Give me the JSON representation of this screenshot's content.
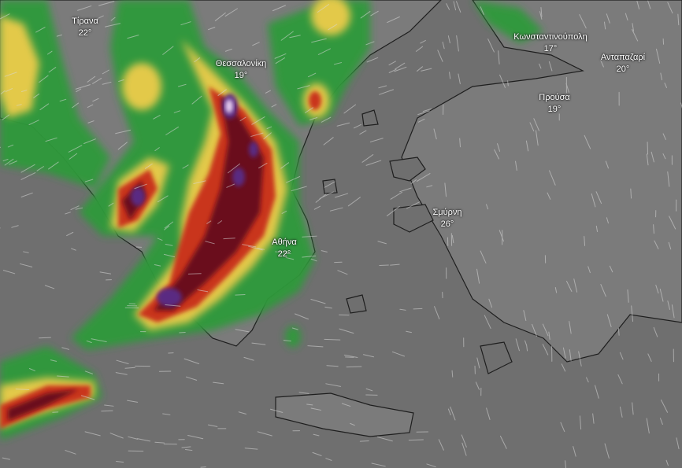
{
  "map": {
    "layer": "precipitation and wind",
    "colors": {
      "sea": "#6f6f6f",
      "land": "#7a7a7a",
      "coast": "#1e1e1e",
      "rain_light": "#2f9a3a",
      "rain_moderate": "#e3c94a",
      "rain_heavy": "#c9361f",
      "rain_very_heavy": "#6b0f1e",
      "rain_extreme": "#5a2a82"
    }
  },
  "cities": [
    {
      "name": "Τίρανα",
      "temp": "22°"
    },
    {
      "name": "Θεσσαλονίκη",
      "temp": "19°"
    },
    {
      "name": "Κωνσταντινούπολη",
      "temp": "17°"
    },
    {
      "name": "Ανταπαζαρί",
      "temp": "20°"
    },
    {
      "name": "Προύσα",
      "temp": "19°"
    },
    {
      "name": "Σμύρνη",
      "temp": "26°"
    },
    {
      "name": "Αθήνα",
      "temp": "22°"
    }
  ]
}
